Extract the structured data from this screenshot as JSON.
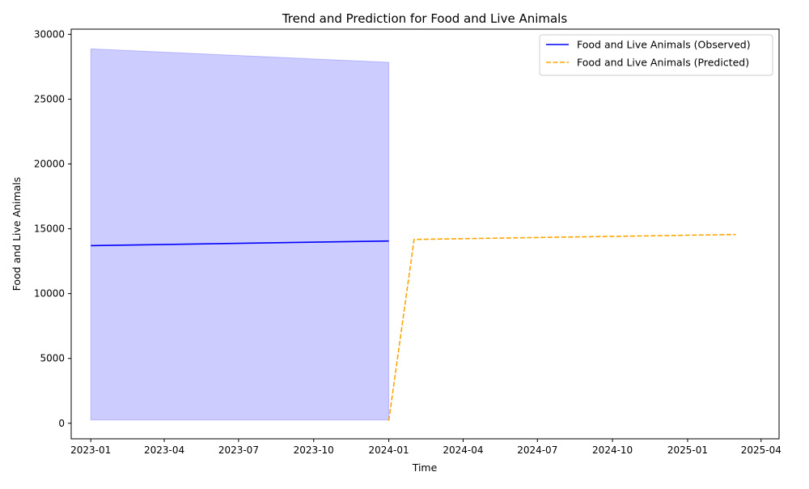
{
  "chart_data": {
    "type": "line",
    "title": "Trend and Prediction for Food and Live Animals",
    "xlabel": "Time",
    "ylabel": "Food and Live Animals",
    "x_tick_labels": [
      "2023-01",
      "2023-04",
      "2023-07",
      "2023-10",
      "2024-01",
      "2024-04",
      "2024-07",
      "2024-10",
      "2025-01",
      "2025-04"
    ],
    "y_ticks": [
      0,
      5000,
      10000,
      15000,
      20000,
      25000,
      30000
    ],
    "y_tick_labels": [
      "0",
      "5000",
      "10000",
      "15000",
      "20000",
      "25000",
      "30000"
    ],
    "xlim": [
      "2022-12-08",
      "2025-04-23"
    ],
    "ylim": [
      -1200,
      30400
    ],
    "grid": false,
    "legend_position": "top-right",
    "series": [
      {
        "name": "Food and Live Animals (Observed)",
        "style": "solid",
        "color": "#0000ff",
        "x": [
          "2023-01-01",
          "2024-01-01"
        ],
        "y": [
          13700,
          14060
        ]
      },
      {
        "name": "Food and Live Animals (Predicted)",
        "style": "dashed",
        "color": "#ffa500",
        "x": [
          "2024-01-01",
          "2024-02-01",
          "2025-03-01"
        ],
        "y": [
          200,
          14180,
          14560
        ]
      }
    ],
    "confidence_band": {
      "color": "#0000ff",
      "opacity": 0.2,
      "x": [
        "2023-01-01",
        "2024-01-01"
      ],
      "upper": [
        28880,
        27840
      ],
      "lower": [
        250,
        250
      ]
    }
  }
}
